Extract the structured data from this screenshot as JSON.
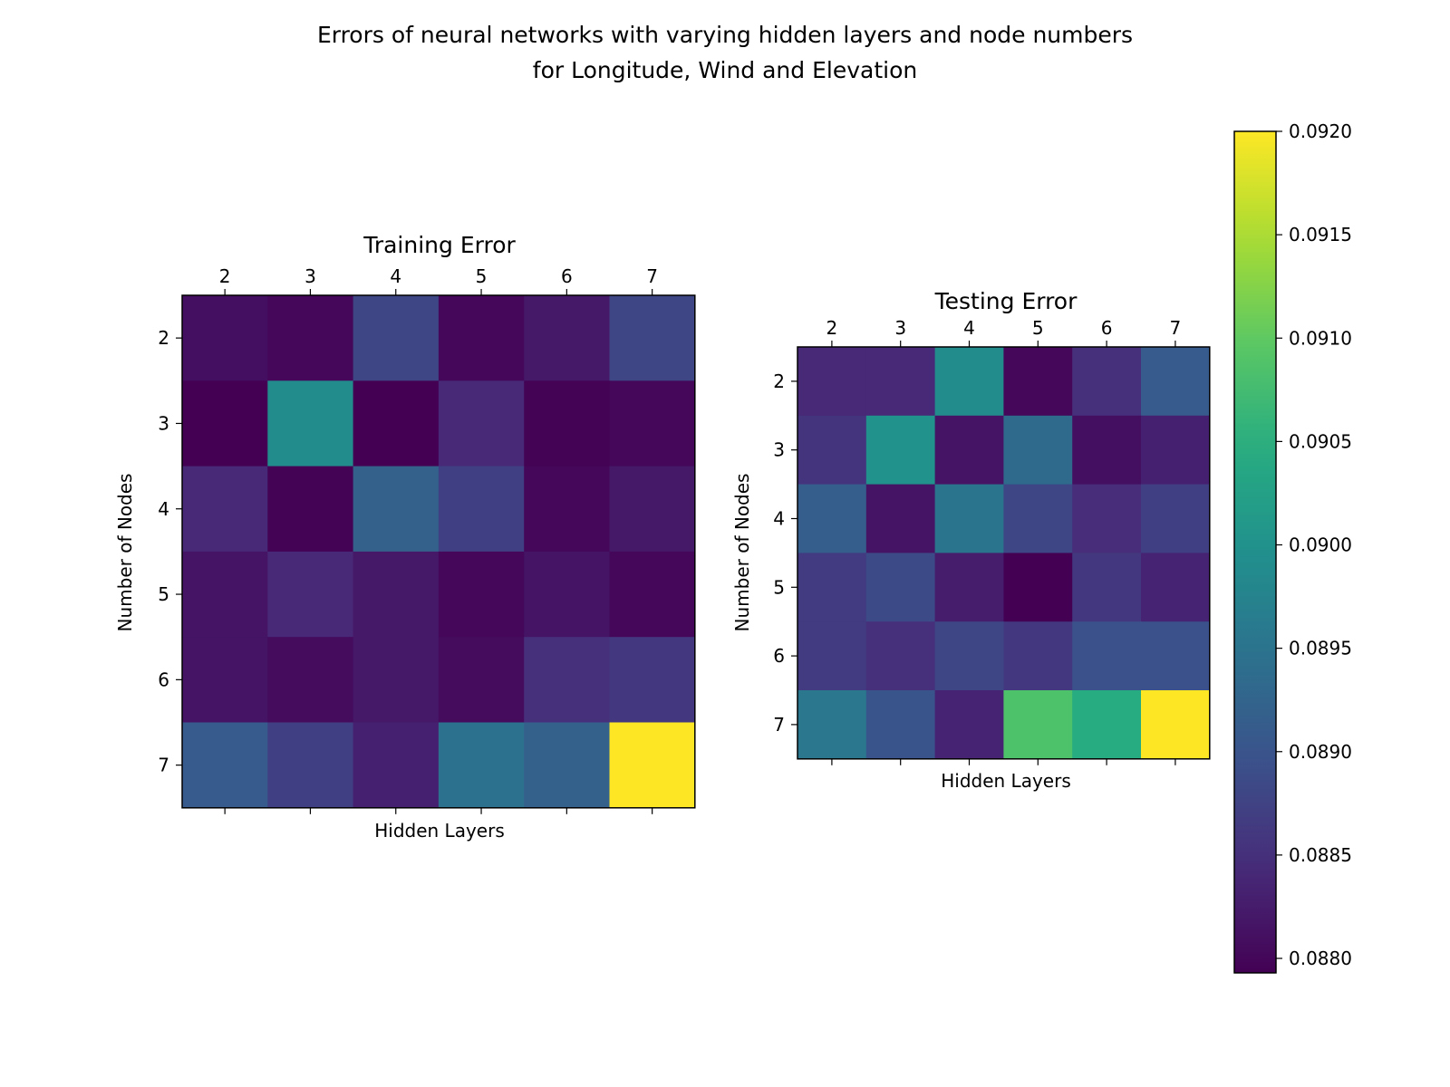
{
  "chart_data": {
    "type": "heatmap",
    "title_lines": [
      "Errors of neural networks with varying hidden layers and node numbers",
      "for Longitude, Wind and Elevation"
    ],
    "colormap": "viridis",
    "color_range": [
      0.08793,
      0.092
    ],
    "colorbar": {
      "ticks": [
        0.088,
        0.0885,
        0.089,
        0.0895,
        0.09,
        0.0905,
        0.091,
        0.0915,
        0.092
      ],
      "tick_labels": [
        "0.0880",
        "0.0885",
        "0.0890",
        "0.0895",
        "0.0900",
        "0.0905",
        "0.0910",
        "0.0915",
        "0.0920"
      ]
    },
    "panels": [
      {
        "title": "Training Error",
        "xlabel": "Hidden Layers",
        "ylabel": "Number of Nodes",
        "x": [
          "2",
          "3",
          "4",
          "5",
          "6",
          "7"
        ],
        "y": [
          "2",
          "3",
          "4",
          "5",
          "6",
          "7"
        ],
        "values": [
          [
            0.0881,
            0.088,
            0.0888,
            0.088,
            0.0882,
            0.0888
          ],
          [
            0.08793,
            0.0899,
            0.08793,
            0.0884,
            0.08795,
            0.088
          ],
          [
            0.0884,
            0.08795,
            0.0892,
            0.0887,
            0.088,
            0.0882
          ],
          [
            0.08815,
            0.0884,
            0.0882,
            0.088,
            0.08815,
            0.088
          ],
          [
            0.08815,
            0.08805,
            0.0882,
            0.08805,
            0.0885,
            0.0886
          ],
          [
            0.0891,
            0.0887,
            0.0883,
            0.08945,
            0.0892,
            0.092
          ]
        ]
      },
      {
        "title": "Testing Error",
        "xlabel": "Hidden Layers",
        "ylabel": "Number of Nodes",
        "x": [
          "2",
          "3",
          "4",
          "5",
          "6",
          "7"
        ],
        "y": [
          "2",
          "3",
          "4",
          "5",
          "6",
          "7"
        ],
        "values": [
          [
            0.0884,
            0.0884,
            0.0899,
            0.088,
            0.0885,
            0.0891
          ],
          [
            0.08855,
            0.09,
            0.08815,
            0.08935,
            0.0881,
            0.0883
          ],
          [
            0.08915,
            0.08815,
            0.0895,
            0.0888,
            0.08845,
            0.0887
          ],
          [
            0.08865,
            0.08885,
            0.08825,
            0.08793,
            0.0886,
            0.08835
          ],
          [
            0.08865,
            0.0885,
            0.0888,
            0.0886,
            0.08895,
            0.08895
          ],
          [
            0.08955,
            0.089,
            0.08835,
            0.09085,
            0.09045,
            0.092
          ]
        ]
      }
    ]
  }
}
